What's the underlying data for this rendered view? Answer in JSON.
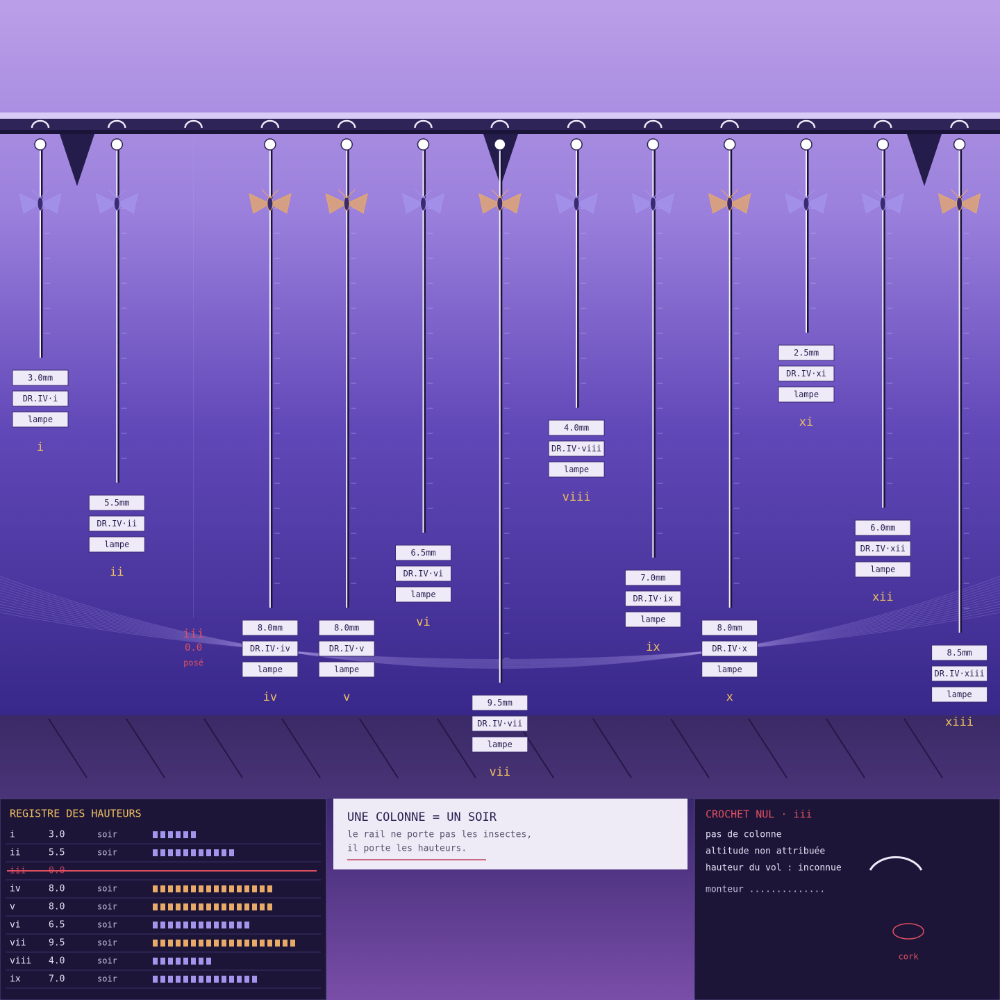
{
  "columns": [
    {
      "id": "i",
      "height": 3.0,
      "height_label": "3.0mm",
      "code": "DR.IV·i",
      "tag": "lampe",
      "color": "#a394ec"
    },
    {
      "id": "ii",
      "height": 5.5,
      "height_label": "5.5mm",
      "code": "DR.IV·ii",
      "tag": "lampe",
      "color": "#a394ec"
    },
    {
      "id": "iii",
      "height": 0,
      "height_label": "0.0",
      "tag": "posé",
      "color": "#e05060"
    },
    {
      "id": "iv",
      "height": 8.0,
      "height_label": "8.0mm",
      "code": "DR.IV·iv",
      "tag": "lampe",
      "color": "#e8aa66"
    },
    {
      "id": "v",
      "height": 8.0,
      "height_label": "8.0mm",
      "code": "DR.IV·v",
      "tag": "lampe",
      "color": "#e8aa66"
    },
    {
      "id": "vi",
      "height": 6.5,
      "height_label": "6.5mm",
      "code": "DR.IV·vi",
      "tag": "lampe",
      "color": "#a394ec"
    },
    {
      "id": "vii",
      "height": 9.5,
      "height_label": "9.5mm",
      "code": "DR.IV·vii",
      "tag": "lampe",
      "color": "#e8aa66"
    },
    {
      "id": "viii",
      "height": 4.0,
      "height_label": "4.0mm",
      "code": "DR.IV·viii",
      "tag": "lampe",
      "color": "#a394ec"
    },
    {
      "id": "ix",
      "height": 7.0,
      "height_label": "7.0mm",
      "code": "DR.IV·ix",
      "tag": "lampe",
      "color": "#a394ec"
    },
    {
      "id": "x",
      "height": 8.0,
      "height_label": "8.0mm",
      "code": "DR.IV·x",
      "tag": "lampe",
      "color": "#e8aa66"
    },
    {
      "id": "xi",
      "height": 2.5,
      "height_label": "2.5mm",
      "code": "DR.IV·xi",
      "tag": "lampe",
      "color": "#a394ec"
    },
    {
      "id": "xii",
      "height": 6.0,
      "height_label": "6.0mm",
      "code": "DR.IV·xii",
      "tag": "lampe",
      "color": "#a394ec"
    },
    {
      "id": "xiii",
      "height": 8.5,
      "height_label": "8.5mm",
      "code": "DR.IV·xiii",
      "tag": "lampe",
      "color": "#e8aa66"
    }
  ],
  "registry": {
    "title": "REGISTRE DES HAUTEURS",
    "rows": [
      [
        "i",
        "3.0",
        "soir"
      ],
      [
        "ii",
        "5.5",
        "soir"
      ],
      [
        "iii",
        "0.0"
      ],
      [
        "iv",
        "8.0",
        "soir"
      ],
      [
        "v",
        "8.0",
        "soir"
      ],
      [
        "vi",
        "6.5",
        "soir"
      ],
      [
        "vii",
        "9.5",
        "soir"
      ],
      [
        "viii",
        "4.0",
        "soir"
      ],
      [
        "ix",
        "7.0",
        "soir"
      ]
    ]
  },
  "card": {
    "title": "UNE COLONNE = UN SOIR",
    "lines": [
      "le rail ne porte pas les insectes,",
      "il porte les hauteurs."
    ]
  },
  "null_hook": {
    "title": "CROCHET NUL · iii",
    "lines": [
      "pas de colonne",
      "altitude non attribuée",
      "hauteur du vol : inconnue"
    ],
    "monteur": "monteur ..............",
    "cork": "cork"
  }
}
